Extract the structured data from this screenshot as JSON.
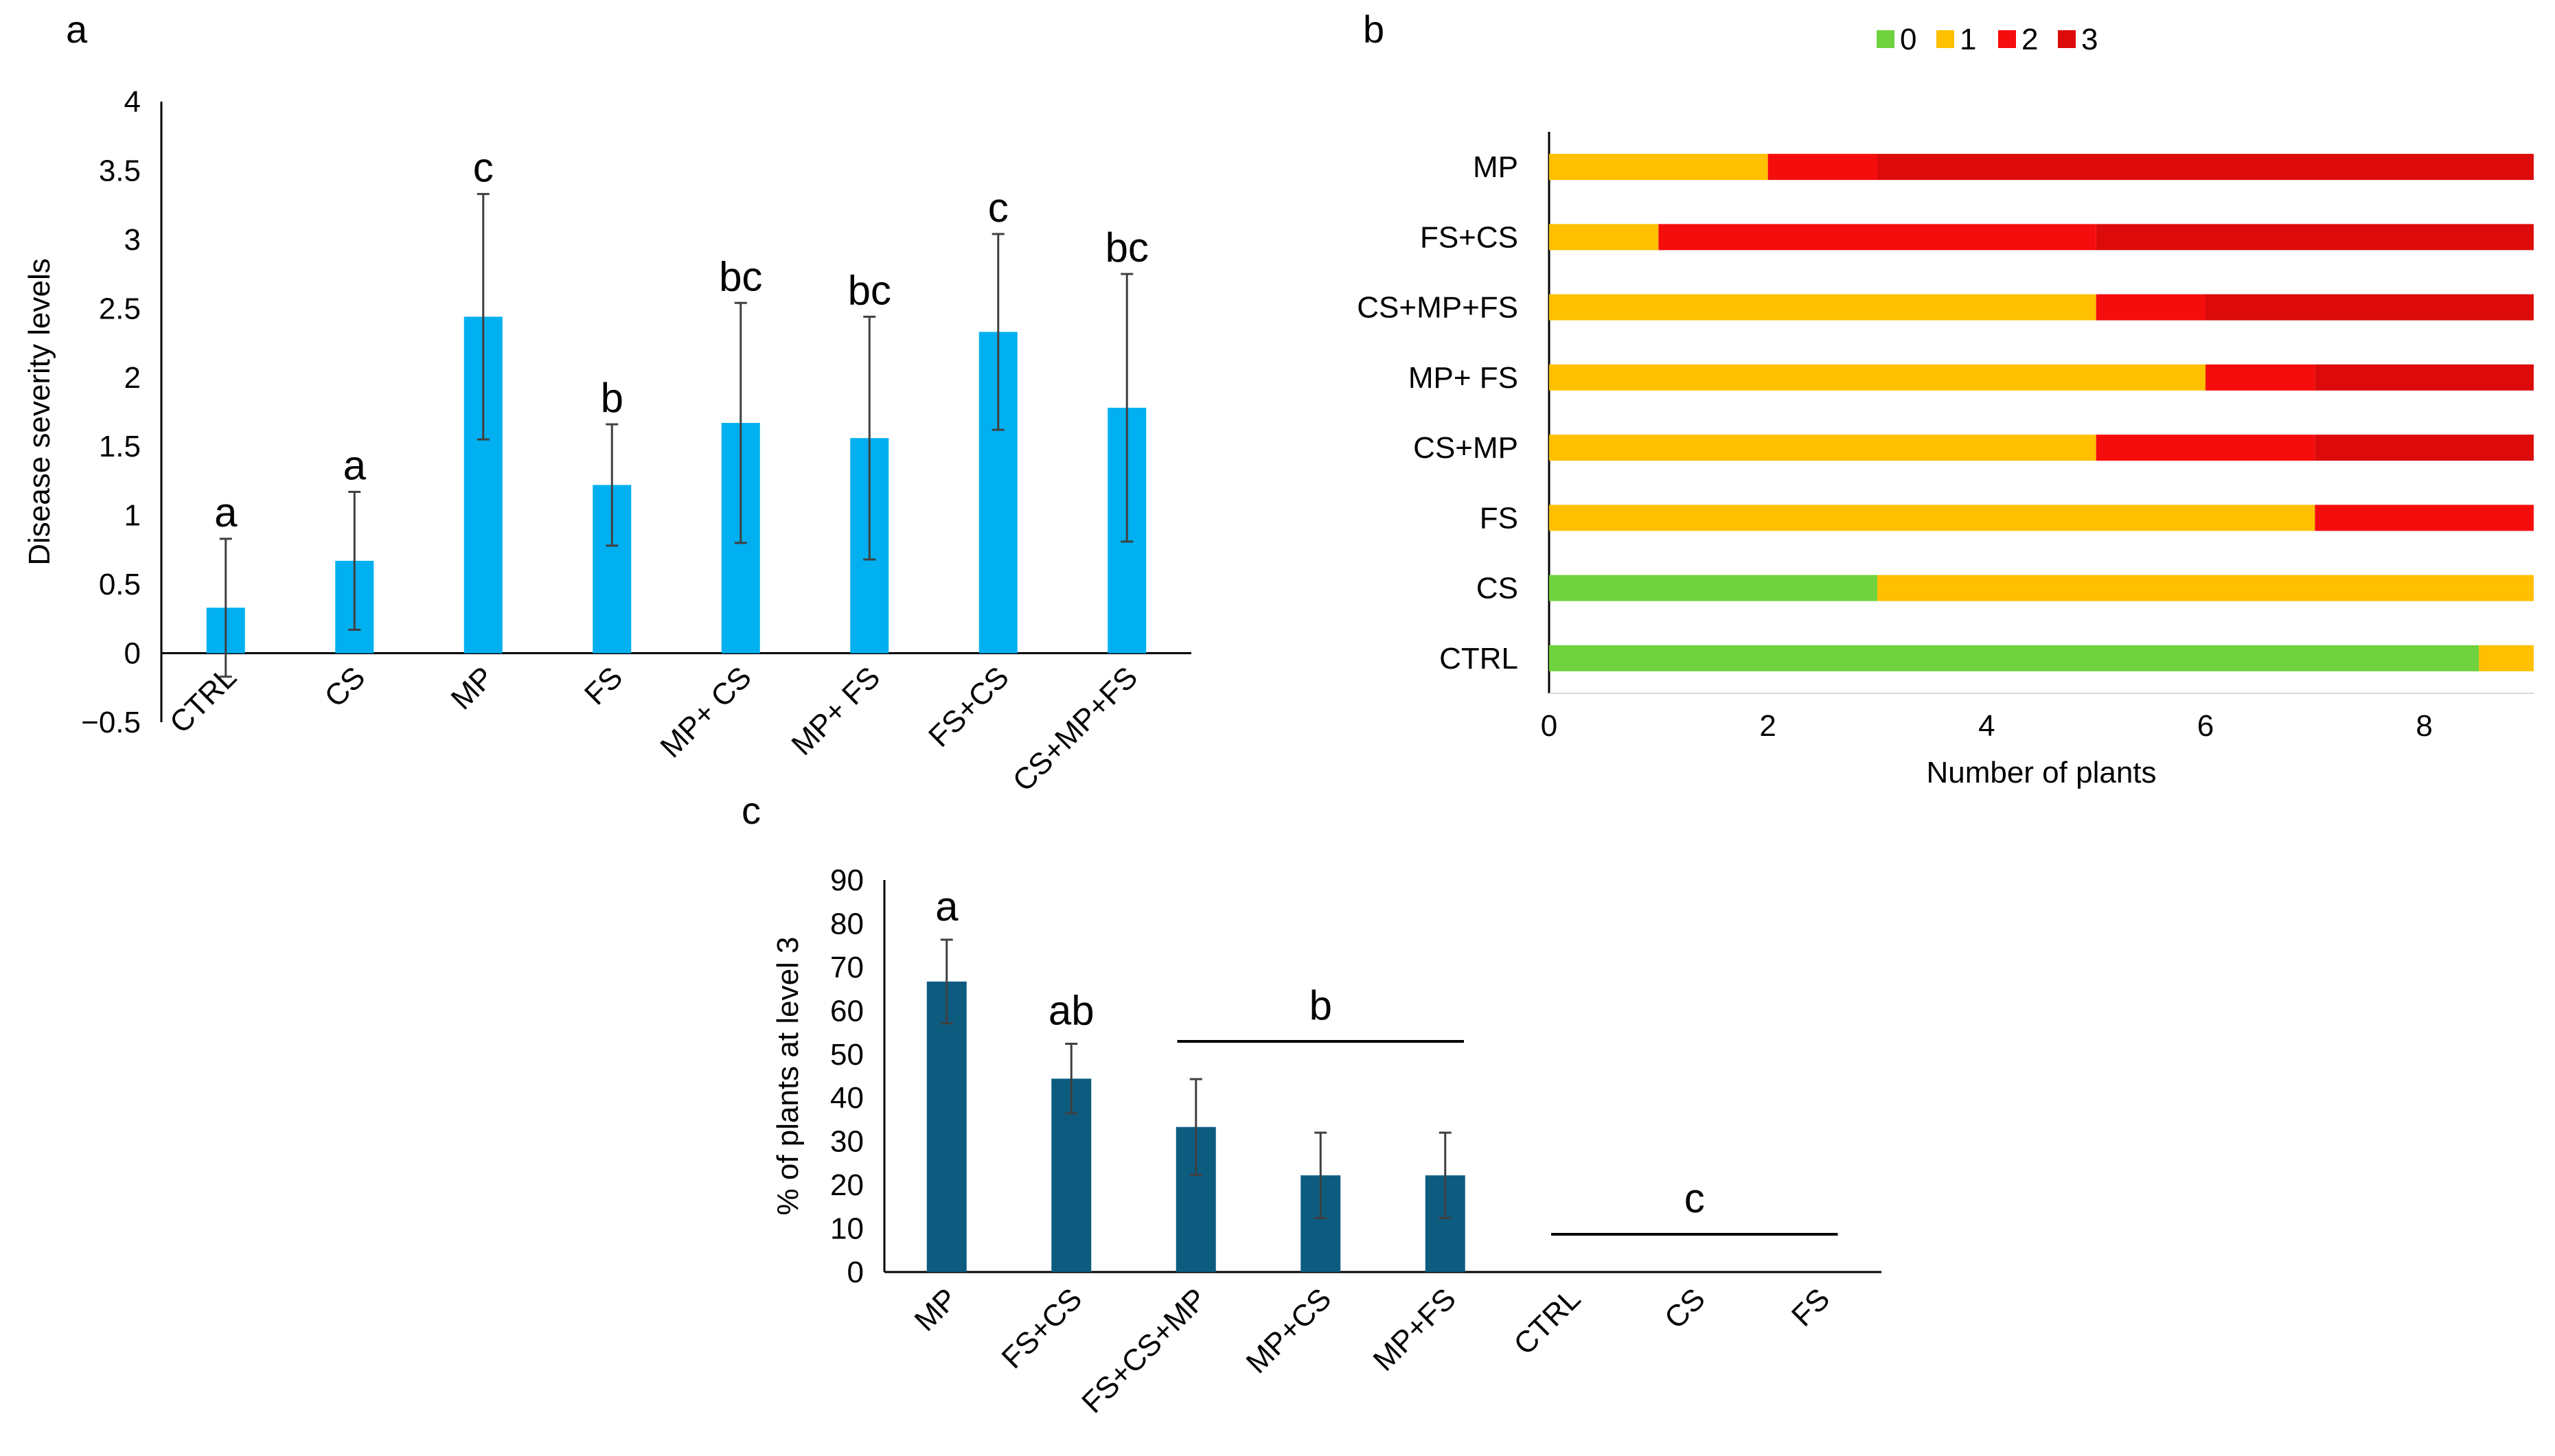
{
  "chart_data": [
    {
      "panel": "a",
      "type": "bar",
      "ylabel": "Disease severity levels",
      "ylim": [
        -0.5,
        4
      ],
      "yticks": [
        4,
        3.5,
        3,
        2.5,
        2,
        1.5,
        1,
        0.5,
        0,
        -0.5
      ],
      "ytick_labels": [
        "4",
        "3.5",
        "3",
        "2.5",
        "2",
        "1.5",
        "1",
        "0.5",
        "0",
        "−0.5"
      ],
      "categories": [
        "CTRL",
        "CS",
        "MP",
        "FS",
        "MP+ CS",
        "MP+ FS",
        "FS+CS",
        "CS+MP+FS"
      ],
      "values": [
        0.33,
        0.67,
        2.44,
        1.22,
        1.67,
        1.56,
        2.33,
        1.78
      ],
      "errors": [
        0.5,
        0.5,
        0.89,
        0.44,
        0.87,
        0.88,
        0.71,
        0.97
      ],
      "letters": [
        "a",
        "a",
        "c",
        "b",
        "bc",
        "bc",
        "c",
        "bc"
      ],
      "color": "#00b0f0"
    },
    {
      "panel": "b",
      "type": "stacked-bar-horizontal",
      "xlabel": "Number of plants",
      "xlim": [
        0,
        9
      ],
      "xticks": [
        0,
        2,
        4,
        6,
        8
      ],
      "legend": [
        "0",
        "1",
        "2",
        "3"
      ],
      "legend_position": "top",
      "colors": [
        "#6fd23e",
        "#ffc000",
        "#f50d0d",
        "#dc0a0a"
      ],
      "categories": [
        "MP",
        "FS+CS",
        "CS+MP+FS",
        "MP+ FS",
        "CS+MP",
        "FS",
        "CS",
        "CTRL"
      ],
      "series": [
        {
          "name": "0",
          "values": [
            0,
            0,
            0,
            0,
            0,
            0,
            3,
            8.5
          ]
        },
        {
          "name": "1",
          "values": [
            2,
            1,
            5,
            6,
            5,
            7,
            6,
            0.5
          ]
        },
        {
          "name": "2",
          "values": [
            1,
            4,
            1,
            1,
            2,
            2,
            0,
            0
          ]
        },
        {
          "name": "3",
          "values": [
            6,
            4,
            3,
            2,
            2,
            0,
            0,
            0
          ]
        }
      ]
    },
    {
      "panel": "c",
      "type": "bar",
      "ylabel": "% of plants at level 3",
      "ylim": [
        0,
        90
      ],
      "yticks": [
        90,
        80,
        70,
        60,
        50,
        40,
        30,
        20,
        10,
        0
      ],
      "categories": [
        "MP",
        "FS+CS",
        "FS+CS+MP",
        "MP+CS",
        "MP+FS",
        "CTRL",
        "CS",
        "FS"
      ],
      "values": [
        66.7,
        44.4,
        33.3,
        22.2,
        22.2,
        0,
        0,
        0
      ],
      "errors": [
        9.6,
        8.0,
        11.0,
        9.8,
        9.8,
        0,
        0,
        0
      ],
      "letters": [
        {
          "text": "a",
          "over": [
            0,
            0
          ]
        },
        {
          "text": "ab",
          "over": [
            1,
            1
          ]
        },
        {
          "text": "b",
          "over": [
            2,
            4
          ]
        },
        {
          "text": "c",
          "over": [
            5,
            7
          ]
        }
      ],
      "color": "#0d5c80"
    }
  ]
}
